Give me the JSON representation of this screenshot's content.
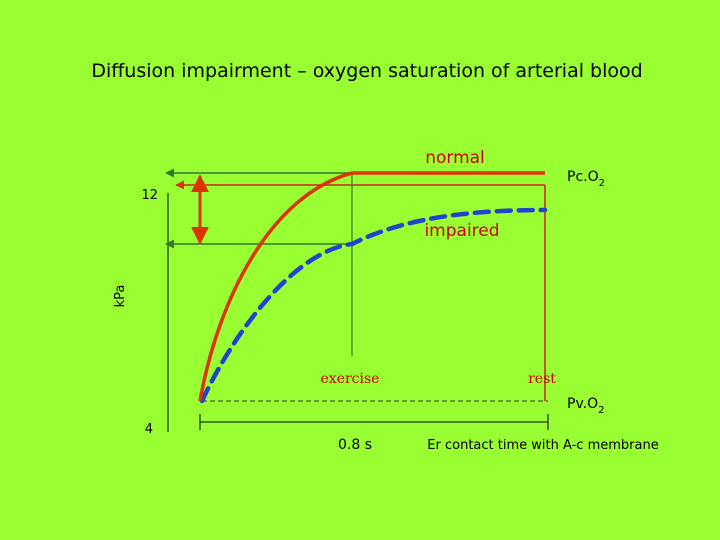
{
  "title": "Diffusion impairment – oxygen saturation of arterial blood",
  "colors": {
    "background": "#99ff33",
    "normal": "#dd3300",
    "impaired": "#2244cc",
    "guide": "#337733",
    "label_red": "#cc0000"
  },
  "labels": {
    "normal": "normal",
    "impaired": "impaired",
    "pco2_main": "Pc.O",
    "pco2_sub": "2",
    "pvo2_main": "Pv.O",
    "pvo2_sub": "2",
    "exercise": "exercise",
    "rest": "rest",
    "time": "0.8 s",
    "contact": "Er contact time with A-c membrane"
  },
  "axis": {
    "ylabel": "kPa",
    "tick_high": "12",
    "tick_low": "4"
  }
}
